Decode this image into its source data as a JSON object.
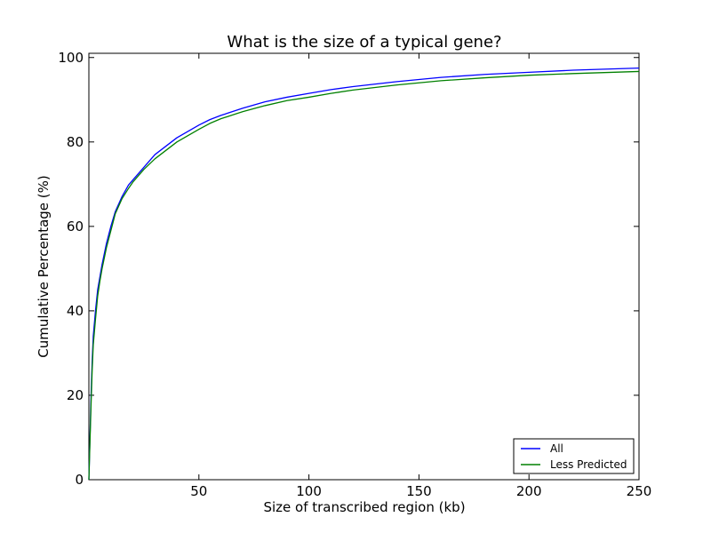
{
  "chart_data": {
    "type": "line",
    "title": "What is the size of a typical gene?",
    "xlabel": "Size of transcribed region (kb)",
    "ylabel": "Cumulative Percentage (%)",
    "xlim": [
      0,
      250
    ],
    "ylim": [
      0,
      101
    ],
    "xticks": [
      50,
      100,
      150,
      200,
      250
    ],
    "xtick_labels": [
      "50",
      "100",
      "150",
      "200",
      "250"
    ],
    "yticks": [
      0,
      20,
      40,
      60,
      80,
      100
    ],
    "ytick_labels": [
      "0",
      "20",
      "40",
      "60",
      "80",
      "100"
    ],
    "grid": false,
    "legend_position": "lower-right",
    "series": [
      {
        "name": "All",
        "color": "#0000ff",
        "x": [
          0,
          0.5,
          1,
          1.5,
          2,
          3,
          4,
          5,
          6,
          8,
          10,
          12,
          15,
          18,
          20,
          25,
          30,
          35,
          40,
          45,
          50,
          55,
          60,
          70,
          80,
          90,
          100,
          110,
          120,
          140,
          160,
          180,
          200,
          220,
          250
        ],
        "y": [
          0,
          10,
          20,
          28,
          34,
          40,
          45,
          48,
          51,
          56,
          60,
          63.5,
          67,
          69.8,
          71,
          74,
          77,
          79,
          81,
          82.5,
          84,
          85.3,
          86.3,
          88,
          89.5,
          90.6,
          91.5,
          92.4,
          93.1,
          94.3,
          95.3,
          96,
          96.5,
          97,
          97.5
        ]
      },
      {
        "name": "Less Predicted",
        "color": "#008000",
        "x": [
          0,
          0.5,
          1,
          1.5,
          2,
          3,
          4,
          5,
          6,
          8,
          10,
          12,
          15,
          18,
          20,
          25,
          30,
          35,
          40,
          45,
          50,
          55,
          60,
          70,
          80,
          90,
          100,
          110,
          120,
          140,
          160,
          180,
          200,
          220,
          250
        ],
        "y": [
          0,
          9,
          18,
          26,
          32,
          38,
          43.5,
          47,
          50,
          55,
          59,
          63,
          66.5,
          69,
          70.5,
          73.5,
          76,
          78,
          80,
          81.5,
          83,
          84.4,
          85.5,
          87.2,
          88.6,
          89.8,
          90.6,
          91.5,
          92.3,
          93.5,
          94.5,
          95.2,
          95.8,
          96.2,
          96.7
        ]
      }
    ]
  }
}
